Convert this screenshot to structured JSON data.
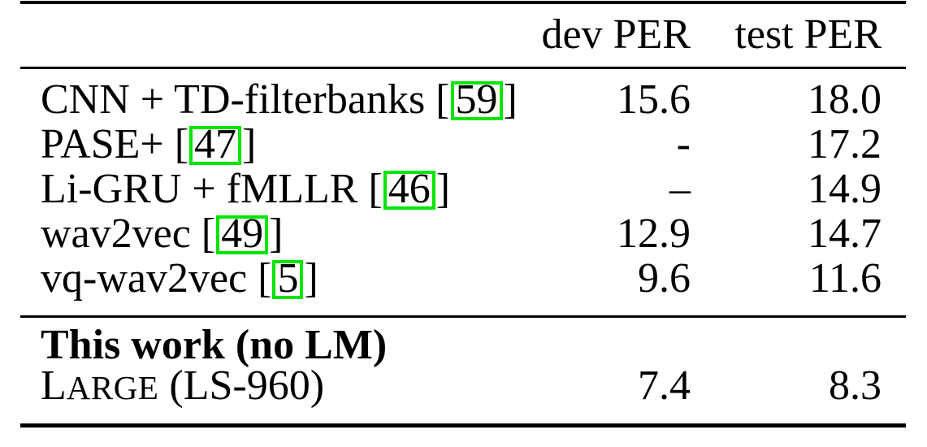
{
  "table": {
    "header": {
      "dev": "dev PER",
      "test": "test PER"
    },
    "rows": [
      {
        "label": "CNN + TD-filterbanks [",
        "citation": "59",
        "bracket_close": "]",
        "dev": "15.6",
        "test": "18.0"
      },
      {
        "label": "PASE+ [",
        "citation": "47",
        "bracket_close": "]",
        "dev": "-",
        "test": "17.2"
      },
      {
        "label": "Li-GRU + fMLLR [",
        "citation": "46",
        "bracket_close": "]",
        "dev": "–",
        "test": "14.9"
      },
      {
        "label": "wav2vec [",
        "citation": "49",
        "bracket_close": "]",
        "dev": "12.9",
        "test": "14.7"
      },
      {
        "label": "vq-wav2vec [",
        "citation": "5",
        "bracket_close": "]",
        "dev": "9.6",
        "test": "11.6"
      }
    ],
    "section": {
      "heading": "This work (no LM)",
      "row": {
        "label_initial": "L",
        "label_smallcaps": "ARGE",
        "label_suffix": " (LS-960)",
        "dev": "7.4",
        "test": "8.3"
      }
    },
    "citation_box_color": "#00e400",
    "rule_color": "#000000"
  }
}
